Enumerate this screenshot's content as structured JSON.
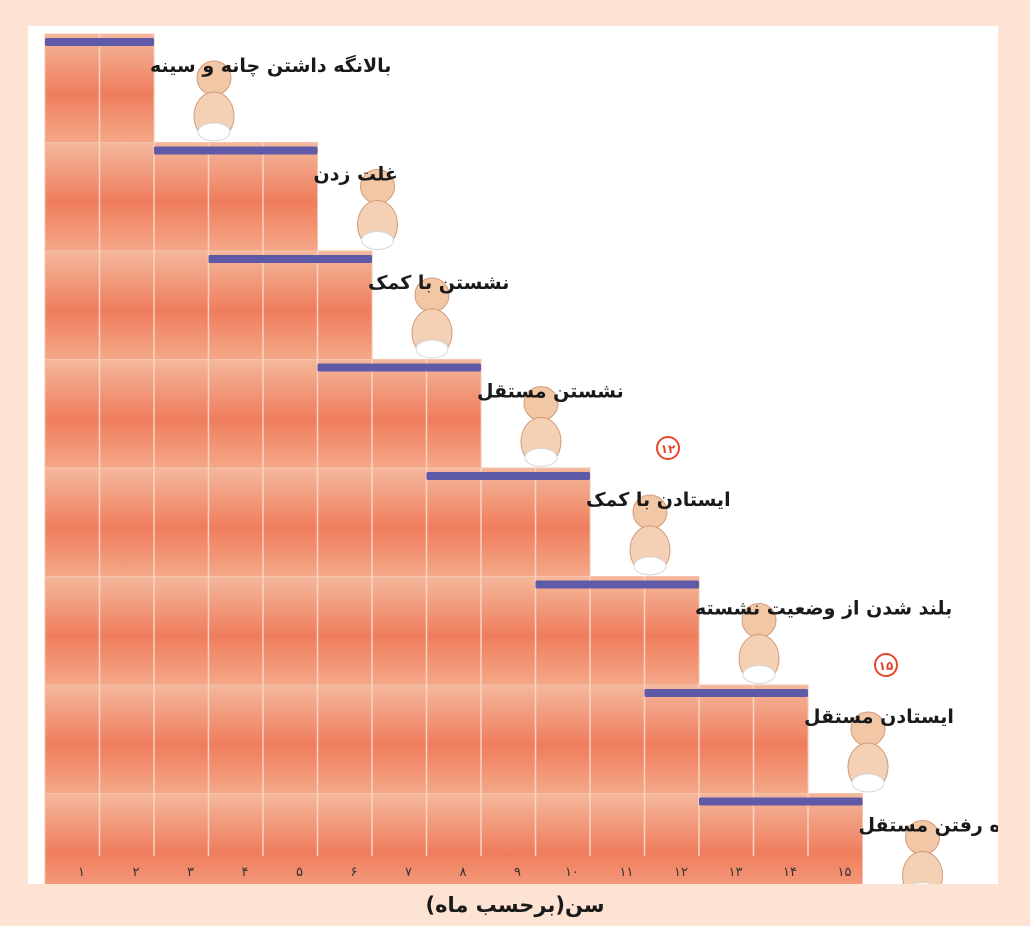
{
  "chart_data": {
    "type": "bar",
    "orientation": "horizontal-range",
    "xlabel": "سن(برحسب ماه)",
    "x_ticks": [
      "۱",
      "۲",
      "۳",
      "۴",
      "۵",
      "۶",
      "۷",
      "۸",
      "۹",
      "۱۰",
      "۱۱",
      "۱۲",
      "۱۳",
      "۱۴",
      "۱۵"
    ],
    "x_range": [
      0,
      15
    ],
    "milestones": [
      {
        "label": "بالانگه داشتن چانه و سینه",
        "start": 0,
        "end": 2,
        "icon": "baby-lifting-chin-icon"
      },
      {
        "label": "غلت زدن",
        "start": 2,
        "end": 5,
        "icon": "baby-rolling-icon"
      },
      {
        "label": "نشستن با کمک",
        "start": 3,
        "end": 6,
        "icon": "baby-sitting-with-support-icon"
      },
      {
        "label": "نشستن مستقل",
        "start": 5,
        "end": 8,
        "icon": "baby-sitting-icon"
      },
      {
        "label": "ایستادن با کمک",
        "start": 7,
        "end": 10,
        "icon": "baby-standing-with-support-icon"
      },
      {
        "label": "بلند شدن از وضعیت نشسته",
        "start": 9,
        "end": 12,
        "icon": "baby-pulling-up-icon"
      },
      {
        "label": "ایستادن مستقل",
        "start": 11,
        "end": 14,
        "icon": "toddler-standing-icon"
      },
      {
        "label": "راه رفتن مستقل",
        "start": 12,
        "end": 15,
        "icon": "toddler-walking-icon"
      }
    ],
    "callouts": [
      {
        "text": "۱۲",
        "milestone": 4
      },
      {
        "text": "۱۵",
        "milestone": 6
      }
    ],
    "colors": {
      "bar_top": "#f4b89c",
      "bar_mid": "#ef7d5d",
      "bar_bottom": "#f4a888",
      "range_line": "#5f5aa8",
      "callout": "#e8452c",
      "background": "#fce3d3"
    }
  }
}
